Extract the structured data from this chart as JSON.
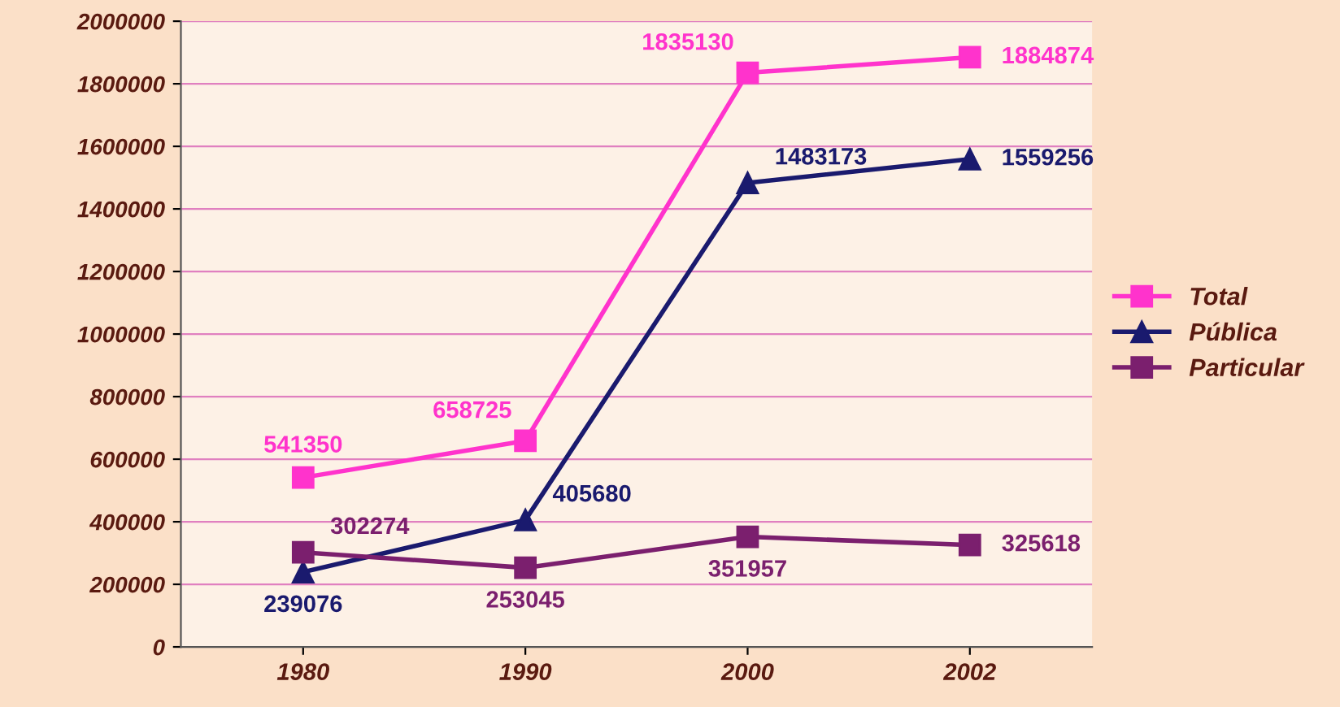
{
  "chart_data": {
    "type": "line",
    "categories": [
      "1980",
      "1990",
      "2000",
      "2002"
    ],
    "series": [
      {
        "name": "Total",
        "color": "#ff33cc",
        "marker": "square",
        "values": [
          541350,
          658725,
          1835130,
          1884874
        ]
      },
      {
        "name": "Pública",
        "color": "#1a1a6e",
        "marker": "triangle",
        "values": [
          239076,
          405680,
          1483173,
          1559256
        ]
      },
      {
        "name": "Particular",
        "color": "#7b1f6e",
        "marker": "square",
        "values": [
          302274,
          253045,
          351957,
          325618
        ]
      }
    ],
    "ylim": [
      0,
      2000000
    ],
    "yticks": [
      0,
      200000,
      400000,
      600000,
      800000,
      1000000,
      1200000,
      1400000,
      1600000,
      1800000,
      2000000
    ],
    "grid": "y",
    "legend": "right",
    "data_labels": true,
    "line_style": "solid"
  }
}
